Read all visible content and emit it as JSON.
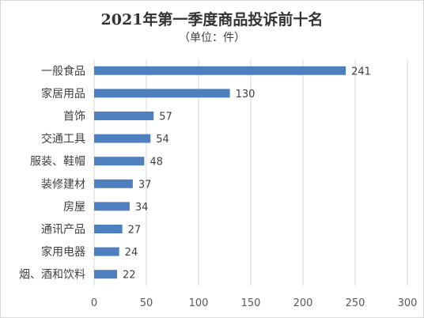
{
  "chart_data": {
    "type": "bar",
    "orientation": "horizontal",
    "title": "2021年第一季度商品投诉前十名",
    "subtitle": "（单位：件）",
    "categories": [
      "一般食品",
      "家居用品",
      "首饰",
      "交通工具",
      "服装、鞋帽",
      "装修建材",
      "房屋",
      "通讯产品",
      "家用电器",
      "烟、酒和饮料"
    ],
    "values": [
      241,
      130,
      57,
      54,
      48,
      37,
      34,
      27,
      24,
      22
    ],
    "xlim": [
      0,
      300
    ],
    "xticks": [
      "0",
      "50",
      "100",
      "150",
      "200",
      "250",
      "300"
    ],
    "grid": true,
    "bar_color": "#4e7fbe",
    "grid_color": "#d9d9d9"
  }
}
